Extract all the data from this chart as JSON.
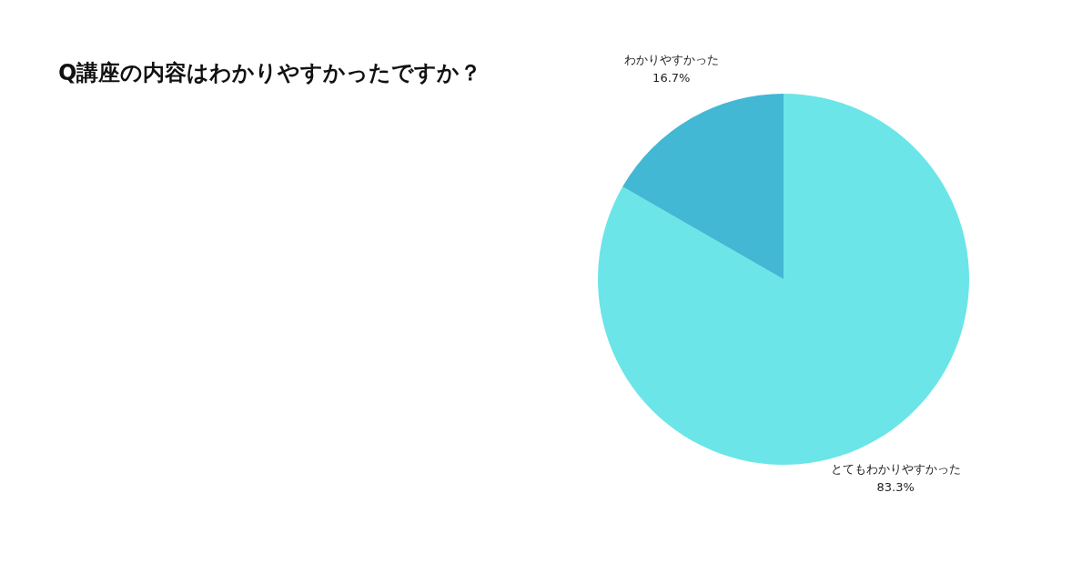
{
  "chart_data": {
    "type": "pie",
    "title": "Q講座の内容はわかりやすかったですか？",
    "categories": [
      "とてもわかりやすかった",
      "わかりやすかった"
    ],
    "values": [
      83.3,
      16.7
    ],
    "colors": [
      "#6be5e8",
      "#42b8d4"
    ],
    "value_labels": [
      "83.3%",
      "16.7%"
    ]
  }
}
